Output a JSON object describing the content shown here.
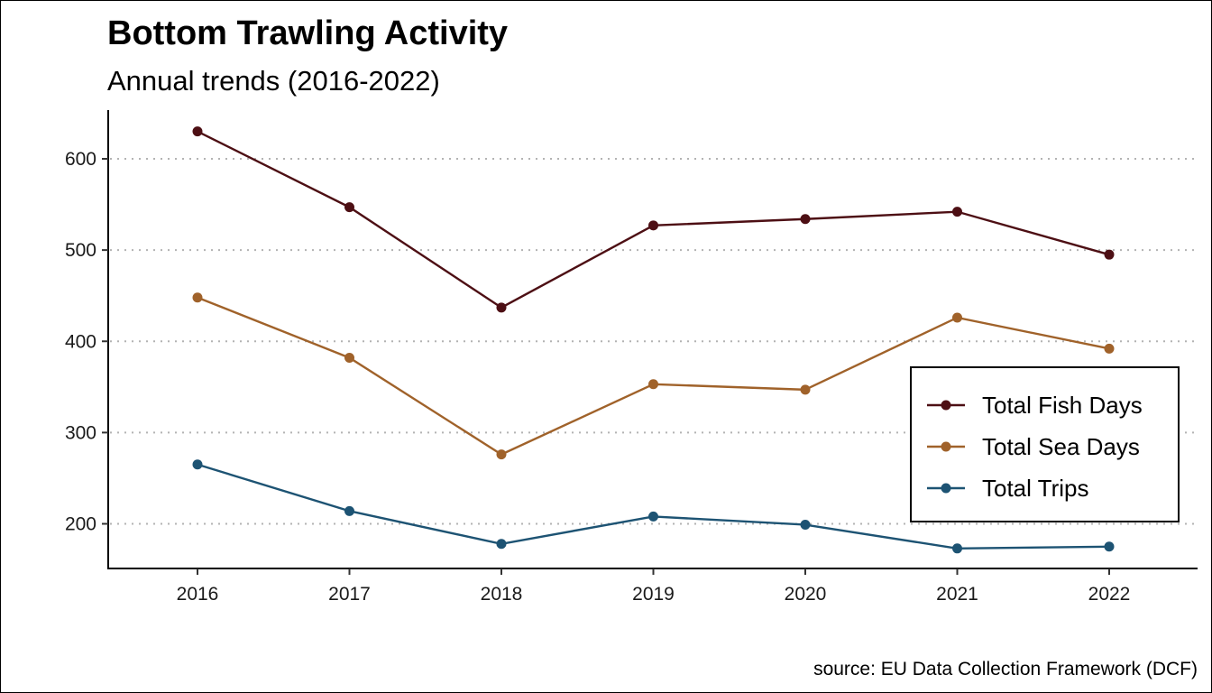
{
  "chart_data": {
    "type": "line",
    "title": "Bottom Trawling Activity",
    "subtitle": "Annual trends (2016-2022)",
    "caption": "source: EU Data Collection Framework (DCF)",
    "x": [
      "2016",
      "2017",
      "2018",
      "2019",
      "2020",
      "2021",
      "2022"
    ],
    "y_ticks": [
      200,
      300,
      400,
      500,
      600
    ],
    "ylim": [
      150,
      652
    ],
    "grid": "horizontal dotted",
    "legend_position": "right",
    "series": [
      {
        "name": "Total Fish Days",
        "color": "#4d0f14",
        "values": [
          630,
          547,
          437,
          527,
          534,
          542,
          495
        ]
      },
      {
        "name": "Total Sea Days",
        "color": "#a0622a",
        "values": [
          448,
          382,
          276,
          353,
          347,
          426,
          392
        ]
      },
      {
        "name": "Total Trips",
        "color": "#1d5373",
        "values": [
          265,
          214,
          178,
          208,
          199,
          173,
          175
        ]
      }
    ]
  }
}
